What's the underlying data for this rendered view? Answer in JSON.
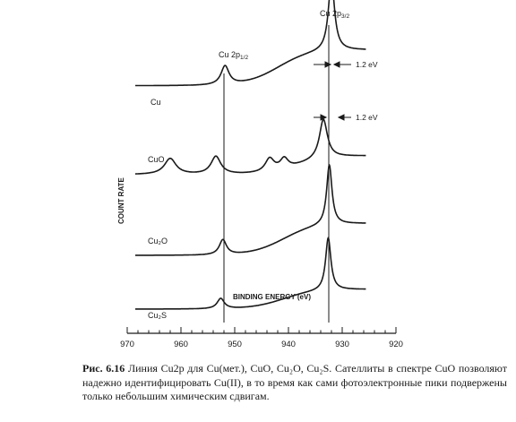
{
  "chart_data": {
    "type": "line",
    "title": "",
    "xlabel": "BINDING ENERGY (eV)",
    "ylabel": "COUNT RATE",
    "xlim": [
      970,
      920
    ],
    "x_ticks": [
      970,
      960,
      950,
      940,
      930,
      920
    ],
    "x_reversed": true,
    "y_ticks": false,
    "grid": false,
    "series": [
      {
        "name": "Cu",
        "baseline": 0.8,
        "start_level": 0.0,
        "end_level": 3.8,
        "step_center": 942,
        "step_width": 3,
        "peaks": [
          {
            "x": 951.8,
            "height": 2.0,
            "width": 0.9
          },
          {
            "x": 932.0,
            "height": 7.5,
            "width": 0.7
          }
        ]
      },
      {
        "name": "CuO",
        "baseline": 0.1,
        "start_level": 0.0,
        "end_level": 2.0,
        "step_center": 938,
        "step_width": 3,
        "peaks": [
          {
            "x": 962.0,
            "height": 1.7,
            "width": 1.3
          },
          {
            "x": 953.5,
            "height": 1.9,
            "width": 1.1
          },
          {
            "x": 943.5,
            "height": 1.4,
            "width": 1.0
          },
          {
            "x": 940.8,
            "height": 1.1,
            "width": 0.9
          },
          {
            "x": 933.5,
            "height": 4.2,
            "width": 0.9
          }
        ]
      },
      {
        "name": "Cu₂O",
        "baseline": 0.1,
        "start_level": 0.0,
        "end_level": 3.4,
        "step_center": 941,
        "step_width": 3,
        "peaks": [
          {
            "x": 952.2,
            "height": 1.6,
            "width": 0.8
          },
          {
            "x": 932.4,
            "height": 6.4,
            "width": 0.6
          }
        ]
      },
      {
        "name": "Cu₂S",
        "baseline": 0.1,
        "start_level": 0.0,
        "end_level": 2.1,
        "step_center": 941,
        "step_width": 3,
        "peaks": [
          {
            "x": 952.6,
            "height": 1.1,
            "width": 0.8
          },
          {
            "x": 932.6,
            "height": 5.6,
            "width": 0.6
          }
        ]
      }
    ],
    "reference_lines": [
      {
        "label": "Cu 2p1/2",
        "x": 952.0
      },
      {
        "label": "Cu 2p3/2",
        "x": 932.5
      }
    ],
    "annotations": [
      {
        "text": "Cu 2p",
        "subscript": "1/2",
        "near": "Cu 2p1/2 line"
      },
      {
        "text": "Cu 2p",
        "subscript": "3/2",
        "near": "Cu 2p3/2 line"
      },
      {
        "text": "1.2 eV",
        "near": "Cu 2p3/2 (Cu spectrum)"
      },
      {
        "text": "1.2 eV",
        "near": "Cu 2p3/2 (CuO spectrum)"
      }
    ]
  },
  "caption": {
    "label": "Рис. 6.16",
    "text": " Линия Cu2p для Cu(мет.), CuO, Cu₂O, Cu₂S. Сателлиты в спектре CuO позволяют надежно идентифицировать Cu(II), в то время как сами фотоэлектронные пики подвержены только небольшим химическим сдвигам."
  }
}
